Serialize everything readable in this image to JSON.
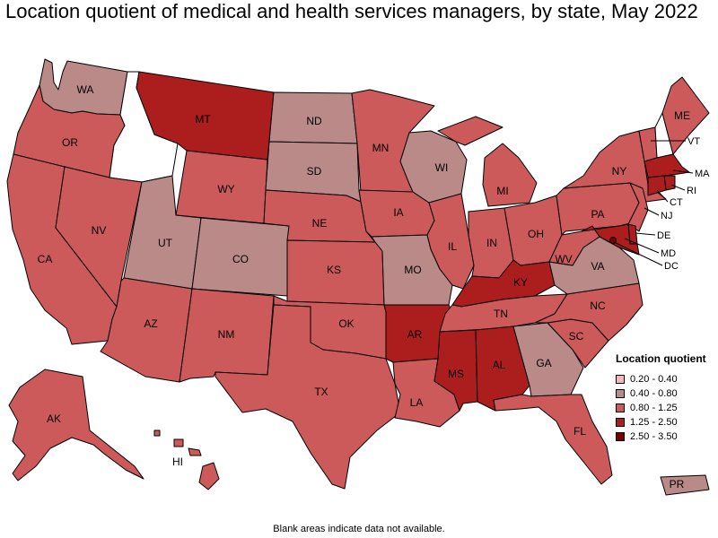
{
  "title": "Location quotient of medical and health services managers, by state, May 2022",
  "legend": {
    "title": "Location quotient",
    "items": [
      {
        "label": "0.20 - 0.40",
        "color": "#f5b8b8"
      },
      {
        "label": "0.40 - 0.80",
        "color": "#b98a88"
      },
      {
        "label": "0.80 - 1.25",
        "color": "#cd5a5a"
      },
      {
        "label": "1.25 - 2.50",
        "color": "#ac1e1e"
      },
      {
        "label": "2.50 - 3.50",
        "color": "#7a0000"
      }
    ]
  },
  "footnote": "Blank areas indicate data not available.",
  "classes": {
    "no_data": "#ffffff",
    "c2": "#b98a88",
    "c3": "#cd5a5a",
    "c4": "#ac1e1e",
    "c5": "#7a0000"
  },
  "states": [
    {
      "id": "WA",
      "label": "WA",
      "class": "c2"
    },
    {
      "id": "OR",
      "label": "OR",
      "class": "c3"
    },
    {
      "id": "CA",
      "label": "CA",
      "class": "c3"
    },
    {
      "id": "ID",
      "label": "",
      "class": "no_data"
    },
    {
      "id": "NV",
      "label": "NV",
      "class": "c3"
    },
    {
      "id": "MT",
      "label": "MT",
      "class": "c4"
    },
    {
      "id": "WY",
      "label": "WY",
      "class": "c3"
    },
    {
      "id": "UT",
      "label": "UT",
      "class": "c2"
    },
    {
      "id": "AZ",
      "label": "AZ",
      "class": "c3"
    },
    {
      "id": "CO",
      "label": "CO",
      "class": "c2"
    },
    {
      "id": "NM",
      "label": "NM",
      "class": "c3"
    },
    {
      "id": "ND",
      "label": "ND",
      "class": "c2"
    },
    {
      "id": "SD",
      "label": "SD",
      "class": "c2"
    },
    {
      "id": "NE",
      "label": "NE",
      "class": "c3"
    },
    {
      "id": "KS",
      "label": "KS",
      "class": "c3"
    },
    {
      "id": "OK",
      "label": "OK",
      "class": "c3"
    },
    {
      "id": "TX",
      "label": "TX",
      "class": "c3"
    },
    {
      "id": "MN",
      "label": "MN",
      "class": "c3"
    },
    {
      "id": "IA",
      "label": "IA",
      "class": "c3"
    },
    {
      "id": "MO",
      "label": "MO",
      "class": "c2"
    },
    {
      "id": "AR",
      "label": "AR",
      "class": "c4"
    },
    {
      "id": "LA",
      "label": "LA",
      "class": "c3"
    },
    {
      "id": "WI",
      "label": "WI",
      "class": "c2"
    },
    {
      "id": "IL",
      "label": "IL",
      "class": "c3"
    },
    {
      "id": "MI",
      "label": "MI",
      "class": "c3"
    },
    {
      "id": "IN",
      "label": "IN",
      "class": "c3"
    },
    {
      "id": "OH",
      "label": "OH",
      "class": "c3"
    },
    {
      "id": "KY",
      "label": "KY",
      "class": "c4"
    },
    {
      "id": "TN",
      "label": "TN",
      "class": "c3"
    },
    {
      "id": "MS",
      "label": "MS",
      "class": "c4"
    },
    {
      "id": "AL",
      "label": "AL",
      "class": "c4"
    },
    {
      "id": "GA",
      "label": "GA",
      "class": "c2"
    },
    {
      "id": "FL",
      "label": "FL",
      "class": "c3"
    },
    {
      "id": "SC",
      "label": "SC",
      "class": "c3"
    },
    {
      "id": "NC",
      "label": "NC",
      "class": "c3"
    },
    {
      "id": "VA",
      "label": "VA",
      "class": "c2"
    },
    {
      "id": "WV",
      "label": "WV",
      "class": "c3"
    },
    {
      "id": "PA",
      "label": "PA",
      "class": "c3"
    },
    {
      "id": "NY",
      "label": "NY",
      "class": "c3"
    },
    {
      "id": "VT",
      "label": "VT",
      "class": "c3"
    },
    {
      "id": "NH",
      "label": "",
      "class": "no_data"
    },
    {
      "id": "ME",
      "label": "ME",
      "class": "c3"
    },
    {
      "id": "MA",
      "label": "MA",
      "class": "c4"
    },
    {
      "id": "RI",
      "label": "RI",
      "class": "c4"
    },
    {
      "id": "CT",
      "label": "CT",
      "class": "c4"
    },
    {
      "id": "NJ",
      "label": "NJ",
      "class": "c3"
    },
    {
      "id": "DE",
      "label": "DE",
      "class": "c4"
    },
    {
      "id": "MD",
      "label": "MD",
      "class": "c4"
    },
    {
      "id": "DC",
      "label": "DC",
      "class": "c5"
    },
    {
      "id": "AK",
      "label": "AK",
      "class": "c3"
    },
    {
      "id": "HI",
      "label": "HI",
      "class": "c3"
    },
    {
      "id": "PR",
      "label": "PR",
      "class": "c2"
    }
  ]
}
